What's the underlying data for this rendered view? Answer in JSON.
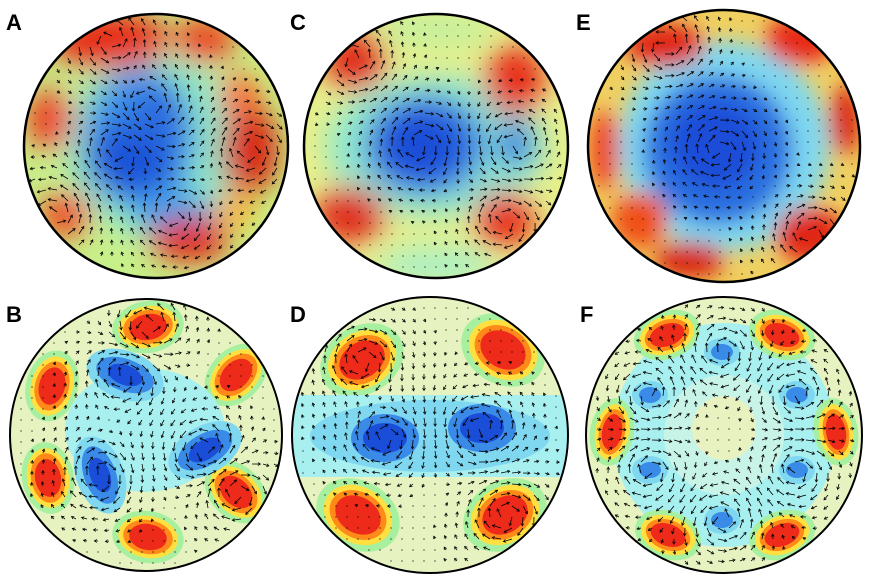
{
  "figure": {
    "panels": [
      {
        "label": "A",
        "row": "top",
        "kind": "measured",
        "vortices": 6,
        "description_colors": [
          "#2060d0",
          "#ff2020"
        ]
      },
      {
        "label": "B",
        "row": "bottom",
        "kind": "model",
        "vortices": 6
      },
      {
        "label": "C",
        "row": "top",
        "kind": "measured",
        "vortices": 4
      },
      {
        "label": "D",
        "row": "bottom",
        "kind": "model",
        "vortices": 4
      },
      {
        "label": "E",
        "row": "top",
        "kind": "measured",
        "vortices": 8
      },
      {
        "label": "F",
        "row": "bottom",
        "kind": "model",
        "vortices": 8
      }
    ],
    "colormap": [
      "#1a3fd6",
      "#3a8be8",
      "#7fd8f0",
      "#a6f0d8",
      "#e6f2c0",
      "#f5f07a",
      "#ffd23a",
      "#ff8a1a",
      "#ee2a1a",
      "#b81010"
    ]
  }
}
